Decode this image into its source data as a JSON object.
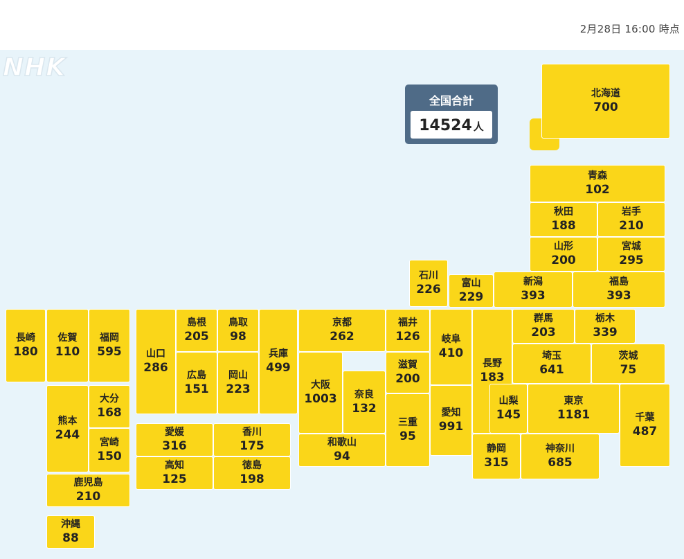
{
  "timestamp": "2月28日 16:00 時点",
  "logo": "NHK",
  "total": {
    "label": "全国合計",
    "value": "14524",
    "unit": "人"
  },
  "prefectures": [
    {
      "id": "hokkaido",
      "name": "北海道",
      "count": "700"
    },
    {
      "id": "aomori",
      "name": "青森",
      "count": "102"
    },
    {
      "id": "akita",
      "name": "秋田",
      "count": "188"
    },
    {
      "id": "iwate",
      "name": "岩手",
      "count": "210"
    },
    {
      "id": "yamagata",
      "name": "山形",
      "count": "200"
    },
    {
      "id": "miyagi",
      "name": "宮城",
      "count": "295"
    },
    {
      "id": "ishikawa",
      "name": "石川",
      "count": "226"
    },
    {
      "id": "toyama",
      "name": "富山",
      "count": "229"
    },
    {
      "id": "niigata",
      "name": "新潟",
      "count": "393"
    },
    {
      "id": "fukushima",
      "name": "福島",
      "count": "393"
    },
    {
      "id": "nagasaki",
      "name": "長崎",
      "count": "180"
    },
    {
      "id": "saga",
      "name": "佐賀",
      "count": "110"
    },
    {
      "id": "fukuoka",
      "name": "福岡",
      "count": "595"
    },
    {
      "id": "yamaguchi",
      "name": "山口",
      "count": "286"
    },
    {
      "id": "shimane",
      "name": "島根",
      "count": "205"
    },
    {
      "id": "tottori",
      "name": "鳥取",
      "count": "98"
    },
    {
      "id": "hyogo",
      "name": "兵庫",
      "count": "499"
    },
    {
      "id": "kyoto",
      "name": "京都",
      "count": "262"
    },
    {
      "id": "fukui",
      "name": "福井",
      "count": "126"
    },
    {
      "id": "gifu",
      "name": "岐阜",
      "count": "410"
    },
    {
      "id": "nagano",
      "name": "長野",
      "count": "183"
    },
    {
      "id": "gunma",
      "name": "群馬",
      "count": "203"
    },
    {
      "id": "tochigi",
      "name": "栃木",
      "count": "339"
    },
    {
      "id": "hiroshima",
      "name": "広島",
      "count": "151"
    },
    {
      "id": "okayama",
      "name": "岡山",
      "count": "223"
    },
    {
      "id": "osaka",
      "name": "大阪",
      "count": "1003"
    },
    {
      "id": "nara",
      "name": "奈良",
      "count": "132"
    },
    {
      "id": "shiga",
      "name": "滋賀",
      "count": "200"
    },
    {
      "id": "saitama",
      "name": "埼玉",
      "count": "641"
    },
    {
      "id": "ibaraki",
      "name": "茨城",
      "count": "75"
    },
    {
      "id": "kumamoto",
      "name": "熊本",
      "count": "244"
    },
    {
      "id": "oita",
      "name": "大分",
      "count": "168"
    },
    {
      "id": "miyazaki",
      "name": "宮崎",
      "count": "150"
    },
    {
      "id": "ehime",
      "name": "愛媛",
      "count": "316"
    },
    {
      "id": "kagawa",
      "name": "香川",
      "count": "175"
    },
    {
      "id": "kochi",
      "name": "高知",
      "count": "125"
    },
    {
      "id": "tokushima",
      "name": "徳島",
      "count": "198"
    },
    {
      "id": "wakayama",
      "name": "和歌山",
      "count": "94"
    },
    {
      "id": "mie",
      "name": "三重",
      "count": "95"
    },
    {
      "id": "aichi",
      "name": "愛知",
      "count": "991"
    },
    {
      "id": "yamanashi",
      "name": "山梨",
      "count": "145"
    },
    {
      "id": "tokyo",
      "name": "東京",
      "count": "1181"
    },
    {
      "id": "chiba",
      "name": "千葉",
      "count": "487"
    },
    {
      "id": "shizuoka",
      "name": "静岡",
      "count": "315"
    },
    {
      "id": "kanagawa",
      "name": "神奈川",
      "count": "685"
    },
    {
      "id": "kagoshima",
      "name": "鹿児島",
      "count": "210"
    },
    {
      "id": "okinawa",
      "name": "沖縄",
      "count": "88"
    }
  ],
  "colors": {
    "tile": "#fad619",
    "sea": "#e8f4fa",
    "total_box": "#4f6b87"
  }
}
